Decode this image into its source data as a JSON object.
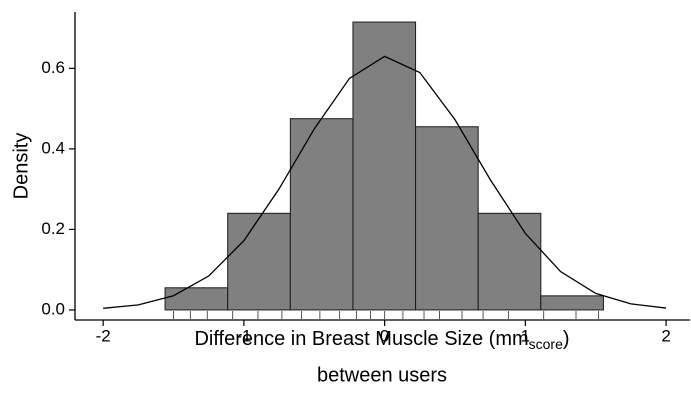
{
  "chart_data": {
    "type": "histogram",
    "ylabel": "Density",
    "xlabel": "Difference in Breast Muscle Size (mm",
    "xlabel_sub": "score",
    "xlabel_end": ")",
    "xlabel_line2": "between users",
    "bins": [
      -1.56,
      -1.115,
      -0.67,
      -0.225,
      0.22,
      0.665,
      1.11,
      1.555
    ],
    "values": [
      0.055,
      0.24,
      0.475,
      0.715,
      0.455,
      0.24,
      0.035
    ],
    "color": "#808080",
    "edge_color": "#1a1a1a",
    "curve": {
      "x": [
        -2,
        -1.75,
        -1.5,
        -1.25,
        -1,
        -0.75,
        -0.5,
        -0.25,
        0,
        0.25,
        0.5,
        0.75,
        1,
        1.25,
        1.5,
        1.75,
        2
      ],
      "y": [
        0.004,
        0.0126,
        0.0353,
        0.0842,
        0.172,
        0.3006,
        0.4496,
        0.575,
        0.6297,
        0.5898,
        0.4726,
        0.324,
        0.1901,
        0.0954,
        0.041,
        0.0151,
        0.0047
      ],
      "color": "#000000"
    },
    "rug": [
      -1.5,
      -1.38,
      -1.26,
      -1.08,
      -0.9,
      -0.73,
      -0.59,
      -0.46,
      -0.32,
      -0.2,
      -0.1,
      0.0,
      0.13,
      0.28,
      0.39,
      0.55,
      0.7,
      0.88,
      1.13,
      1.36,
      1.52
    ],
    "rug_color": "#555555",
    "xlim": [
      -2.2,
      2.17
    ],
    "ylim": [
      -0.025,
      0.74
    ],
    "xticks": [
      -2,
      -1,
      0,
      1,
      2
    ],
    "yticks": [
      {
        "value": 0,
        "label": "0.0"
      },
      0.2,
      0.4,
      0.6
    ]
  }
}
